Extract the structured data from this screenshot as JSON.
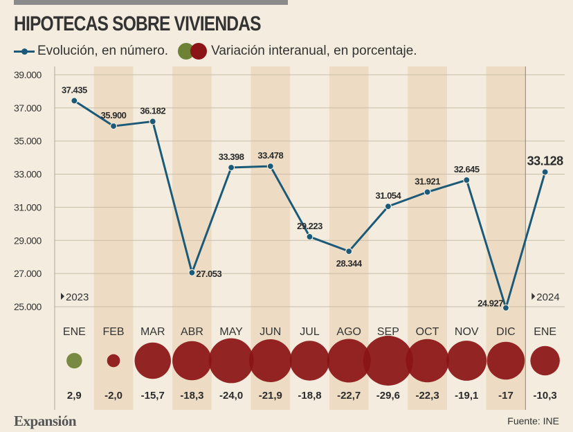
{
  "title": "HIPOTECAS SOBRE VIVIENDAS",
  "legend": {
    "line_label": "Evolución, en número.",
    "bubble_label": "Variación interanual, en porcentaje."
  },
  "colors": {
    "line": "#1a5a78",
    "positive": "#6e8236",
    "negative": "#8b1416",
    "band": "#eddcc3",
    "grid": "#c9bca8"
  },
  "chart_data": {
    "type": "line",
    "categories": [
      "ENE",
      "FEB",
      "MAR",
      "ABR",
      "MAY",
      "JUN",
      "JUL",
      "AGO",
      "SEP",
      "OCT",
      "NOV",
      "DIC",
      "ENE"
    ],
    "values": [
      37435,
      35900,
      36182,
      27053,
      33398,
      33478,
      29223,
      28344,
      31054,
      31921,
      32645,
      24927,
      33128
    ],
    "value_labels": [
      "37.435",
      "35.900",
      "36.182",
      "27.053",
      "33.398",
      "33.478",
      "29.223",
      "28.344",
      "31.054",
      "31.921",
      "32.645",
      "24.927",
      "33.128"
    ],
    "ylim": [
      25000,
      39000
    ],
    "yticks": [
      25000,
      27000,
      29000,
      31000,
      33000,
      35000,
      37000,
      39000
    ],
    "ytick_labels": [
      "25.000",
      "27.000",
      "29.000",
      "31.000",
      "33.000",
      "35.000",
      "37.000",
      "39.000"
    ],
    "year_markers": [
      {
        "index": 0,
        "label": "2023"
      },
      {
        "index": 12,
        "label": "2024"
      }
    ],
    "variation": [
      2.9,
      -2.0,
      -15.7,
      -18.3,
      -24.0,
      -21.9,
      -18.8,
      -22.7,
      -29.6,
      -22.3,
      -19.1,
      -17,
      -10.3
    ],
    "variation_labels": [
      "2,9",
      "-2,0",
      "-15,7",
      "-18,3",
      "-24,0",
      "-21,9",
      "-18,8",
      "-22,7",
      "-29,6",
      "-22,3",
      "-19,1",
      "-17",
      "-10,3"
    ],
    "grid": true
  },
  "footer": {
    "logo": "Expansión",
    "source": "Fuente: INE"
  }
}
